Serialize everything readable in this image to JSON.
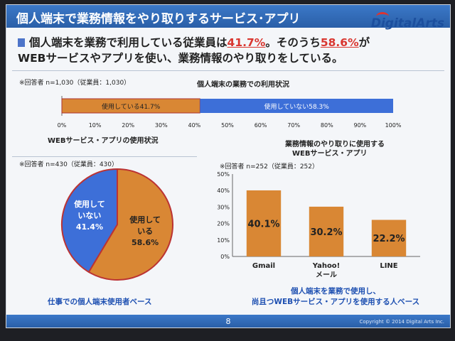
{
  "slide": {
    "title": "個人端末で業務情報をやり取りするサービス･アプリ",
    "logo": "DigitalArts",
    "headline_pre": "個人端末を業務で利用している従業員は",
    "headline_pct1": "41.7%",
    "headline_mid": "。そのうち",
    "headline_pct2": "58.6%",
    "headline_post": "が",
    "headline_line2": "WEBサービスやアプリを使い、業務情報のやり取りをしている。",
    "page_number": "8",
    "copyright": "Copyright © 2014 Digital Arts Inc."
  },
  "chart_data": [
    {
      "type": "bar",
      "orientation": "horizontal-stacked",
      "title": "個人端末の業務での利用状況",
      "respondents": "※回答者 n=1,030（従業員：1,030）",
      "series": [
        {
          "name": "使用している41.7%",
          "value": 41.7,
          "color": "#d98734"
        },
        {
          "name": "使用していない58.3%",
          "value": 58.3,
          "color": "#3d6fd8"
        }
      ],
      "xlim": [
        0,
        100
      ],
      "xticks": [
        "0%",
        "10%",
        "20%",
        "30%",
        "40%",
        "50%",
        "60%",
        "70%",
        "80%",
        "90%",
        "100%"
      ]
    },
    {
      "type": "pie",
      "title": "WEBサービス・アプリの使用状況",
      "respondents": "※回答者 n=430（従業員：430）",
      "slices": [
        {
          "label1": "使用して",
          "label2": "いる",
          "pct_label": "58.6%",
          "value": 58.6,
          "color": "#d98734"
        },
        {
          "label1": "使用して",
          "label2": "いない",
          "pct_label": "41.4%",
          "value": 41.4,
          "color": "#3d6fd8"
        }
      ],
      "footnote": "仕事での個人端末使用者ベース"
    },
    {
      "type": "bar",
      "title_line1": "業務情報のやり取りに使用する",
      "title_line2": "WEBサービス・アプリ",
      "respondents": "※回答者 n=252（従業員：252）",
      "categories": [
        "Gmail",
        "Yahoo!\nメール",
        "LINE"
      ],
      "category_line1": [
        "Gmail",
        "Yahoo!",
        "LINE"
      ],
      "category_line2": [
        "",
        "メール",
        ""
      ],
      "values": [
        40.1,
        30.2,
        22.2
      ],
      "value_labels": [
        "40.1%",
        "30.2%",
        "22.2%"
      ],
      "ylim": [
        0,
        50
      ],
      "yticks": [
        "0%",
        "10%",
        "20%",
        "30%",
        "40%",
        "50%"
      ],
      "color": "#d98734",
      "footnote_line1": "個人端末を業務で使用し、",
      "footnote_line2": "尚且つWEBサービス・アプリを使用する人ベース"
    }
  ]
}
